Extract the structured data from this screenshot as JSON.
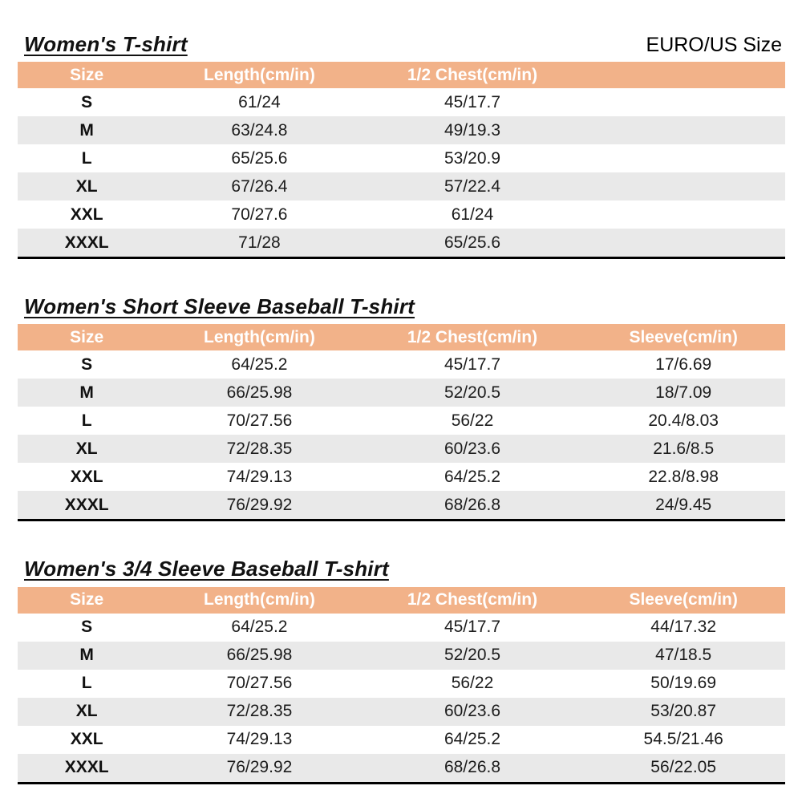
{
  "page": {
    "euro_us_label": "EURO/US Size"
  },
  "colors": {
    "header_bg": "#F2B289",
    "header_text": "#FFFFFF",
    "row_alt_bg": "#E9E9E9",
    "bottom_border": "#000000"
  },
  "tables": [
    {
      "title": "Women's T-shirt",
      "columns": [
        "Size",
        "Length(cm/in)",
        "1/2 Chest(cm/in)",
        ""
      ],
      "rows": [
        [
          "S",
          "61/24",
          "45/17.7",
          ""
        ],
        [
          "M",
          "63/24.8",
          "49/19.3",
          ""
        ],
        [
          "L",
          "65/25.6",
          "53/20.9",
          ""
        ],
        [
          "XL",
          "67/26.4",
          "57/22.4",
          ""
        ],
        [
          "XXL",
          "70/27.6",
          "61/24",
          ""
        ],
        [
          "XXXL",
          "71/28",
          "65/25.6",
          ""
        ]
      ]
    },
    {
      "title": "Women's Short Sleeve Baseball T-shirt",
      "columns": [
        "Size",
        "Length(cm/in)",
        "1/2 Chest(cm/in)",
        "Sleeve(cm/in)"
      ],
      "rows": [
        [
          "S",
          "64/25.2",
          "45/17.7",
          "17/6.69"
        ],
        [
          "M",
          "66/25.98",
          "52/20.5",
          "18/7.09"
        ],
        [
          "L",
          "70/27.56",
          "56/22",
          "20.4/8.03"
        ],
        [
          "XL",
          "72/28.35",
          "60/23.6",
          "21.6/8.5"
        ],
        [
          "XXL",
          "74/29.13",
          "64/25.2",
          "22.8/8.98"
        ],
        [
          "XXXL",
          "76/29.92",
          "68/26.8",
          "24/9.45"
        ]
      ]
    },
    {
      "title": "Women's 3/4 Sleeve Baseball T-shirt",
      "columns": [
        "Size",
        "Length(cm/in)",
        "1/2 Chest(cm/in)",
        "Sleeve(cm/in)"
      ],
      "rows": [
        [
          "S",
          "64/25.2",
          "45/17.7",
          "44/17.32"
        ],
        [
          "M",
          "66/25.98",
          "52/20.5",
          "47/18.5"
        ],
        [
          "L",
          "70/27.56",
          "56/22",
          "50/19.69"
        ],
        [
          "XL",
          "72/28.35",
          "60/23.6",
          "53/20.87"
        ],
        [
          "XXL",
          "74/29.13",
          "64/25.2",
          "54.5/21.46"
        ],
        [
          "XXXL",
          "76/29.92",
          "68/26.8",
          "56/22.05"
        ]
      ]
    }
  ]
}
